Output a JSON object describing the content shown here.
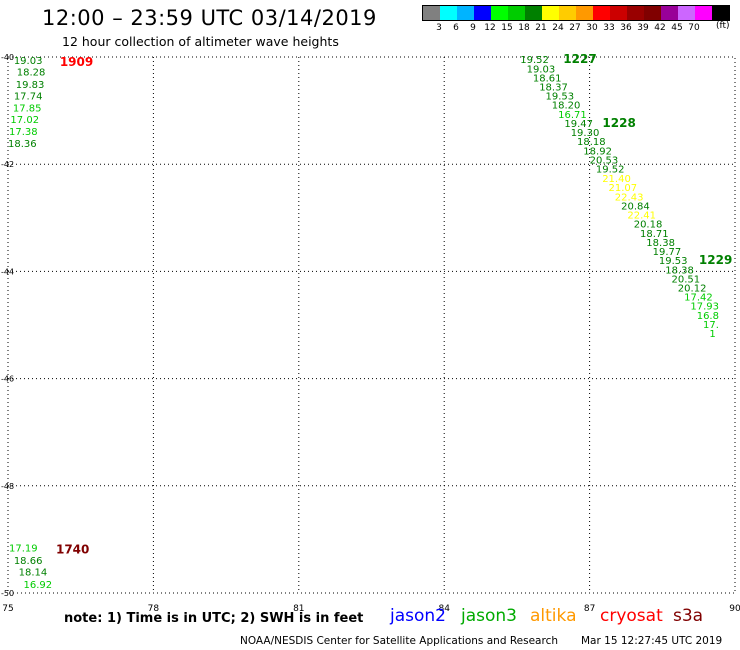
{
  "header": {
    "title": "12:00 – 23:59 UTC 03/14/2019",
    "subtitle": "12 hour collection of altimeter wave heights"
  },
  "legend": {
    "colors": [
      "#808080",
      "#00ffff",
      "#00b4ff",
      "#0000ff",
      "#00ff00",
      "#00cc00",
      "#008000",
      "#ffff00",
      "#ffcc00",
      "#ff9900",
      "#ff0000",
      "#cc0000",
      "#990000",
      "#800000",
      "#990099",
      "#cc66ff",
      "#ff00ff",
      "#000000"
    ],
    "labels": [
      "3",
      "6",
      "9",
      "12",
      "15",
      "18",
      "21",
      "24",
      "27",
      "30",
      "33",
      "36",
      "39",
      "42",
      "45",
      "70"
    ],
    "unit": "(ft)"
  },
  "chart_data": {
    "type": "map",
    "xlim": [
      75,
      90
    ],
    "ylim": [
      -50,
      -40
    ],
    "x_ticks": [
      "75",
      "78",
      "81",
      "84",
      "87",
      "90"
    ],
    "y_ticks": [
      "-40",
      "-42",
      "-44",
      "-46",
      "-48",
      "-50"
    ],
    "tracks": [
      {
        "time": "1909",
        "time_color": "#ff0000",
        "points": [
          {
            "lon": 75.12,
            "lat": -40.06,
            "swh": "19.03",
            "color": "#008000"
          },
          {
            "lon": 75.18,
            "lat": -40.27,
            "swh": "18.28",
            "color": "#008000"
          },
          {
            "lon": 75.16,
            "lat": -40.5,
            "swh": "19.83",
            "color": "#008000"
          },
          {
            "lon": 75.12,
            "lat": -40.72,
            "swh": "17.74",
            "color": "#008000"
          },
          {
            "lon": 75.1,
            "lat": -40.94,
            "swh": "17.85",
            "color": "#00cc00"
          },
          {
            "lon": 75.05,
            "lat": -41.16,
            "swh": "17.02",
            "color": "#00cc00"
          },
          {
            "lon": 75.02,
            "lat": -41.38,
            "swh": "17.38",
            "color": "#00cc00"
          },
          {
            "lon": 75.0,
            "lat": -41.6,
            "swh": "18.36",
            "color": "#008000"
          }
        ]
      },
      {
        "time": "1740",
        "time_color": "#800000",
        "points": [
          {
            "lon": 75.02,
            "lat": -49.15,
            "swh": "17.19",
            "color": "#00cc00"
          },
          {
            "lon": 75.12,
            "lat": -49.38,
            "swh": "18.66",
            "color": "#008000"
          },
          {
            "lon": 75.22,
            "lat": -49.6,
            "swh": "18.14",
            "color": "#008000"
          },
          {
            "lon": 75.32,
            "lat": -49.83,
            "swh": "16.92",
            "color": "#00cc00"
          }
        ]
      },
      {
        "time": "1227",
        "time_color": "#008000",
        "points": [
          {
            "lon": 85.57,
            "lat": -40.04,
            "swh": "19.52",
            "color": "#008000"
          },
          {
            "lon": 85.7,
            "lat": -40.21,
            "swh": "19.03",
            "color": "#008000"
          },
          {
            "lon": 85.83,
            "lat": -40.38,
            "swh": "18.61",
            "color": "#008000"
          },
          {
            "lon": 85.96,
            "lat": -40.55,
            "swh": "18.37",
            "color": "#008000"
          },
          {
            "lon": 86.09,
            "lat": -40.72,
            "swh": "19.53",
            "color": "#008000"
          },
          {
            "lon": 86.22,
            "lat": -40.89,
            "swh": "18.20",
            "color": "#008000"
          },
          {
            "lon": 86.35,
            "lat": -41.06,
            "swh": "16.71",
            "color": "#00cc00"
          }
        ]
      },
      {
        "time": "1228",
        "time_color": "#008000",
        "points": [
          {
            "lon": 86.48,
            "lat": -41.23,
            "swh": "19.47",
            "color": "#008000"
          },
          {
            "lon": 86.61,
            "lat": -41.4,
            "swh": "19.30",
            "color": "#008000"
          },
          {
            "lon": 86.74,
            "lat": -41.57,
            "swh": "18.18",
            "color": "#008000"
          },
          {
            "lon": 86.87,
            "lat": -41.74,
            "swh": "18.92",
            "color": "#008000"
          },
          {
            "lon": 87.0,
            "lat": -41.91,
            "swh": "20.53",
            "color": "#008000"
          },
          {
            "lon": 87.13,
            "lat": -42.08,
            "swh": "19.52",
            "color": "#008000"
          },
          {
            "lon": 87.26,
            "lat": -42.26,
            "swh": "21.40",
            "color": "#ffff00"
          },
          {
            "lon": 87.39,
            "lat": -42.43,
            "swh": "21.07",
            "color": "#ffff00"
          },
          {
            "lon": 87.52,
            "lat": -42.6,
            "swh": "22.43",
            "color": "#ffff00"
          },
          {
            "lon": 87.65,
            "lat": -42.77,
            "swh": "20.84",
            "color": "#008000"
          },
          {
            "lon": 87.78,
            "lat": -42.94,
            "swh": "22.41",
            "color": "#ffff00"
          },
          {
            "lon": 87.91,
            "lat": -43.11,
            "swh": "20.18",
            "color": "#008000"
          },
          {
            "lon": 88.04,
            "lat": -43.28,
            "swh": "18.71",
            "color": "#008000"
          },
          {
            "lon": 88.17,
            "lat": -43.45,
            "swh": "18.38",
            "color": "#008000"
          },
          {
            "lon": 88.3,
            "lat": -43.62,
            "swh": "19.77",
            "color": "#008000"
          }
        ]
      },
      {
        "time": "1229",
        "time_color": "#008000",
        "points": [
          {
            "lon": 88.43,
            "lat": -43.79,
            "swh": "19.53",
            "color": "#008000"
          },
          {
            "lon": 88.56,
            "lat": -43.96,
            "swh": "18.38",
            "color": "#008000"
          },
          {
            "lon": 88.69,
            "lat": -44.13,
            "swh": "20.51",
            "color": "#008000"
          },
          {
            "lon": 88.82,
            "lat": -44.3,
            "swh": "20.12",
            "color": "#008000"
          },
          {
            "lon": 88.95,
            "lat": -44.47,
            "swh": "17.42",
            "color": "#00cc00"
          },
          {
            "lon": 89.08,
            "lat": -44.64,
            "swh": "17.93",
            "color": "#00cc00"
          },
          {
            "lon": 89.21,
            "lat": -44.81,
            "swh": "16.8",
            "color": "#00cc00"
          },
          {
            "lon": 89.34,
            "lat": -44.98,
            "swh": "17.",
            "color": "#00cc00"
          },
          {
            "lon": 89.47,
            "lat": -45.15,
            "swh": "1",
            "color": "#00cc00"
          }
        ]
      }
    ]
  },
  "footer": {
    "note": "note: 1) Time is in UTC; 2) SWH is in feet",
    "satellites": [
      {
        "name": "jason2",
        "color": "#0000ff"
      },
      {
        "name": "jason3",
        "color": "#00aa00"
      },
      {
        "name": "altika",
        "color": "#ff9900"
      },
      {
        "name": "cryosat",
        "color": "#ff0000"
      },
      {
        "name": "s3a",
        "color": "#800000"
      }
    ],
    "credit": "NOAA/NESDIS Center for Satellite Applications and Research",
    "timestamp": "Mar 15 12:27:45 UTC 2019"
  }
}
